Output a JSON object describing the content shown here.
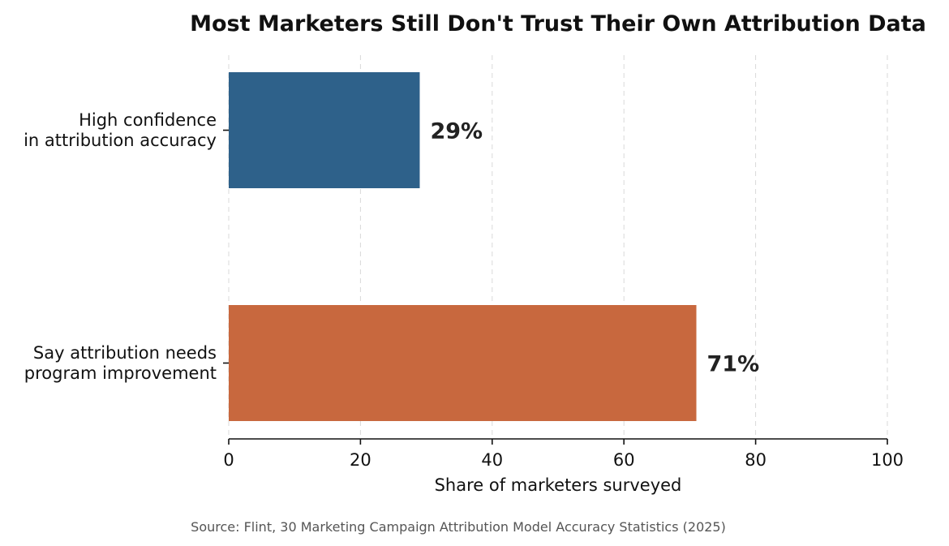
{
  "chart_data": {
    "type": "bar",
    "orientation": "horizontal",
    "title": "Most Marketers Still Don't Trust Their Own Attribution Data",
    "xlabel": "Share of marketers surveyed",
    "ylabel": "",
    "xlim": [
      0,
      100
    ],
    "x_ticks": [
      0,
      20,
      40,
      60,
      80,
      100
    ],
    "x_tick_labels": [
      "0",
      "20",
      "40",
      "60",
      "80",
      "100"
    ],
    "grid": "vertical dashed",
    "categories": [
      [
        "High confidence",
        "in attribution accuracy"
      ],
      [
        "Say attribution needs",
        "program improvement"
      ]
    ],
    "values": [
      29,
      71
    ],
    "value_labels": [
      "29%",
      "71%"
    ],
    "colors": [
      "#2e618a",
      "#c8683e"
    ]
  },
  "source": "Source: Flint, 30 Marketing Campaign Attribution Model Accuracy Statistics (2025)"
}
